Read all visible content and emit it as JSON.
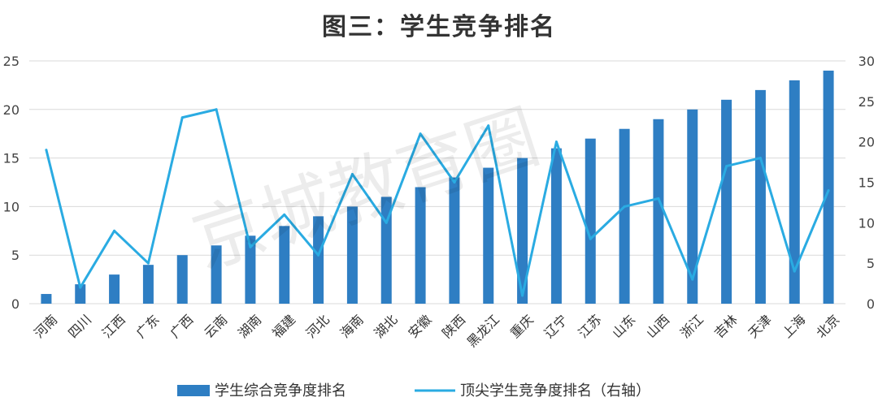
{
  "chart_data": {
    "type": "bar",
    "title": "图三：学生竞争排名",
    "categories": [
      "河南",
      "四川",
      "江西",
      "广东",
      "广西",
      "云南",
      "湖南",
      "福建",
      "河北",
      "海南",
      "湖北",
      "安徽",
      "陕西",
      "黑龙江",
      "重庆",
      "辽宁",
      "江苏",
      "山东",
      "山西",
      "浙江",
      "吉林",
      "天津",
      "上海",
      "北京"
    ],
    "series": [
      {
        "name": "学生综合竞争度排名",
        "type": "bar",
        "axis": "left",
        "color": "#2E7EC3",
        "values": [
          1,
          2,
          3,
          4,
          5,
          6,
          7,
          8,
          9,
          10,
          11,
          12,
          13,
          14,
          15,
          16,
          17,
          18,
          19,
          20,
          21,
          22,
          23,
          24
        ]
      },
      {
        "name": "顶尖学生竞争度排名（右轴）",
        "type": "line",
        "axis": "right",
        "color": "#2AABE2",
        "values": [
          19,
          2,
          9,
          5,
          23,
          24,
          7,
          11,
          6,
          16,
          10,
          21,
          15,
          22,
          1,
          20,
          8,
          12,
          13,
          3,
          17,
          18,
          4,
          14
        ]
      }
    ],
    "y_left": {
      "min": 0,
      "max": 25,
      "ticks": [
        0,
        5,
        10,
        15,
        20,
        25
      ]
    },
    "y_right": {
      "min": 0,
      "max": 30,
      "ticks": [
        0,
        5,
        10,
        15,
        20,
        25,
        30
      ]
    },
    "grid": true,
    "legend": "bottom"
  },
  "watermark": "京城教育圈"
}
